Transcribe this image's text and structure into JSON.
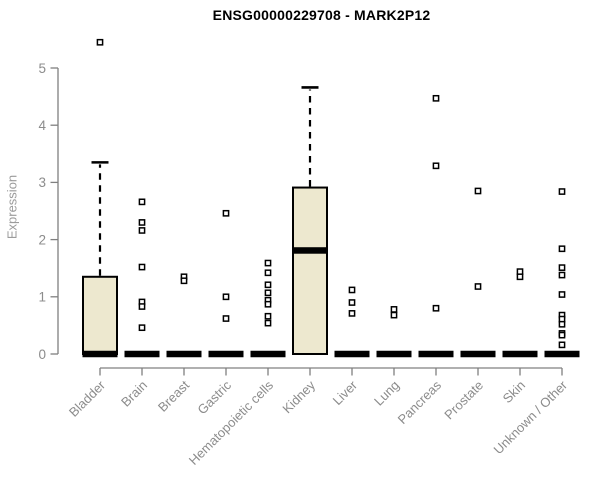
{
  "chart_data": {
    "type": "boxplot",
    "title": "ENSG00000229708 - MARK2P12",
    "ylabel": "Expression",
    "xlabel": "",
    "ylim": [
      0,
      5.6
    ],
    "yticks": [
      0,
      1,
      2,
      3,
      4,
      5
    ],
    "grid": false,
    "legend": false,
    "colors": {
      "box_fill": "#EDE8CF",
      "box_border": "#000000",
      "median": "#000000",
      "axis": "#808080",
      "tick_label": "#8C8C8C",
      "axis_label": "#9B9B9B",
      "outlier_fill": "#FFFFFF",
      "outlier_border": "#000000",
      "background": "#FFFFFF"
    },
    "groups": [
      {
        "label": "Bladder",
        "q1": 0,
        "median": 0,
        "q3": 1.35,
        "whisker_low": 0,
        "whisker_high": 3.35,
        "outliers": [
          5.45
        ]
      },
      {
        "label": "Brain",
        "q1": 0,
        "median": 0,
        "q3": 0,
        "whisker_low": 0,
        "whisker_high": 0,
        "outliers": [
          2.66,
          2.3,
          2.16,
          1.52,
          0.91,
          0.83,
          0.46
        ]
      },
      {
        "label": "Breast",
        "q1": 0,
        "median": 0,
        "q3": 0,
        "whisker_low": 0,
        "whisker_high": 0,
        "outliers": [
          1.35,
          1.28
        ]
      },
      {
        "label": "Gastric",
        "q1": 0,
        "median": 0,
        "q3": 0,
        "whisker_low": 0,
        "whisker_high": 0,
        "outliers": [
          2.46,
          1.0,
          0.62
        ]
      },
      {
        "label": "Hematopoietic cells",
        "q1": 0,
        "median": 0,
        "q3": 0,
        "whisker_low": 0,
        "whisker_high": 0,
        "outliers": [
          1.59,
          1.42,
          1.21,
          1.07,
          0.94,
          0.87,
          0.66,
          0.54
        ]
      },
      {
        "label": "Kidney",
        "q1": 0,
        "median": 1.81,
        "q3": 2.91,
        "whisker_low": 0,
        "whisker_high": 4.66,
        "outliers": []
      },
      {
        "label": "Liver",
        "q1": 0,
        "median": 0,
        "q3": 0,
        "whisker_low": 0,
        "whisker_high": 0,
        "outliers": [
          1.12,
          0.9,
          0.71
        ]
      },
      {
        "label": "Lung",
        "q1": 0,
        "median": 0,
        "q3": 0,
        "whisker_low": 0,
        "whisker_high": 0,
        "outliers": [
          0.78,
          0.68
        ]
      },
      {
        "label": "Pancreas",
        "q1": 0,
        "median": 0,
        "q3": 0,
        "whisker_low": 0,
        "whisker_high": 0,
        "outliers": [
          4.47,
          3.29,
          0.8
        ]
      },
      {
        "label": "Prostate",
        "q1": 0,
        "median": 0,
        "q3": 0,
        "whisker_low": 0,
        "whisker_high": 0,
        "outliers": [
          2.85,
          1.18
        ]
      },
      {
        "label": "Skin",
        "q1": 0,
        "median": 0,
        "q3": 0,
        "whisker_low": 0,
        "whisker_high": 0,
        "outliers": [
          1.44,
          1.35
        ]
      },
      {
        "label": "Unknown / Other",
        "q1": 0,
        "median": 0,
        "q3": 0,
        "whisker_low": 0,
        "whisker_high": 0,
        "outliers": [
          2.84,
          1.84,
          1.51,
          1.38,
          1.04,
          0.68,
          0.61,
          0.52,
          0.36,
          0.33,
          0.16
        ]
      }
    ]
  }
}
